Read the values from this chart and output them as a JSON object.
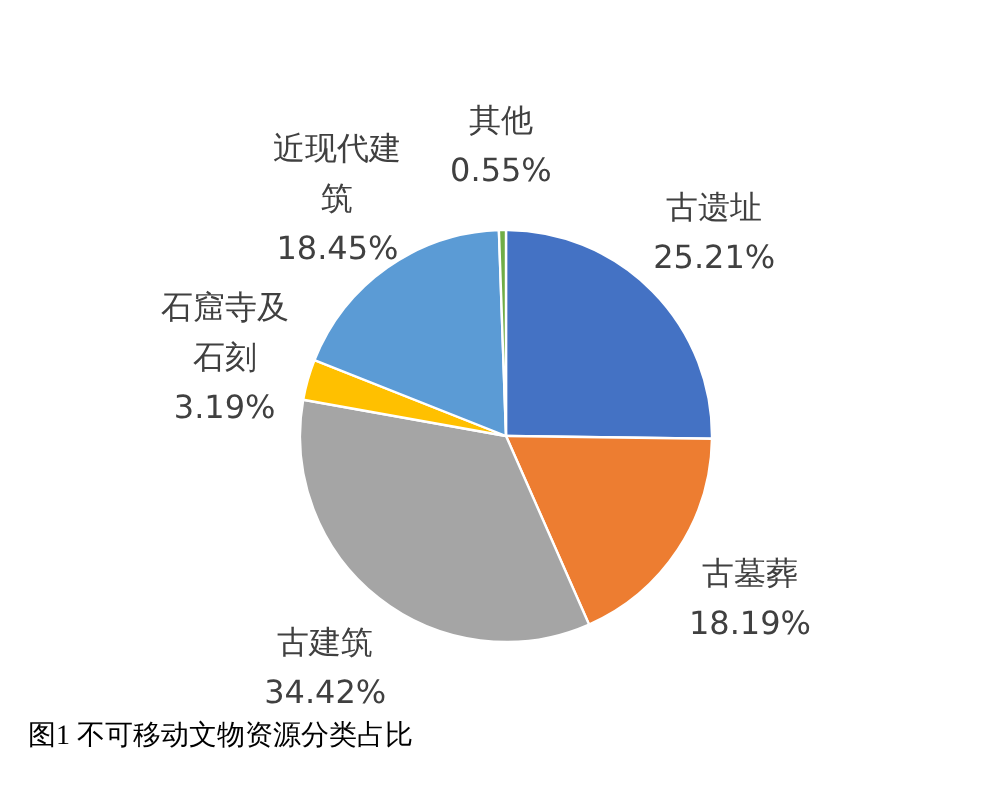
{
  "chart_data": {
    "type": "pie",
    "categories": [
      "古遗址",
      "古墓葬",
      "古建筑",
      "石窟寺及石刻",
      "近现代建筑",
      "其他"
    ],
    "values": [
      25.21,
      18.19,
      34.42,
      3.19,
      18.45,
      0.55
    ],
    "colors": [
      "#4472c4",
      "#ed7d31",
      "#a5a5a5",
      "#ffc000",
      "#5b9bd5",
      "#70ad47"
    ],
    "value_labels": [
      "25.21%",
      "18.19%",
      "34.42%",
      "3.19%",
      "18.45%",
      "0.55%"
    ],
    "annotations": [
      "图1 不可移动文物资源分类占比"
    ]
  }
}
